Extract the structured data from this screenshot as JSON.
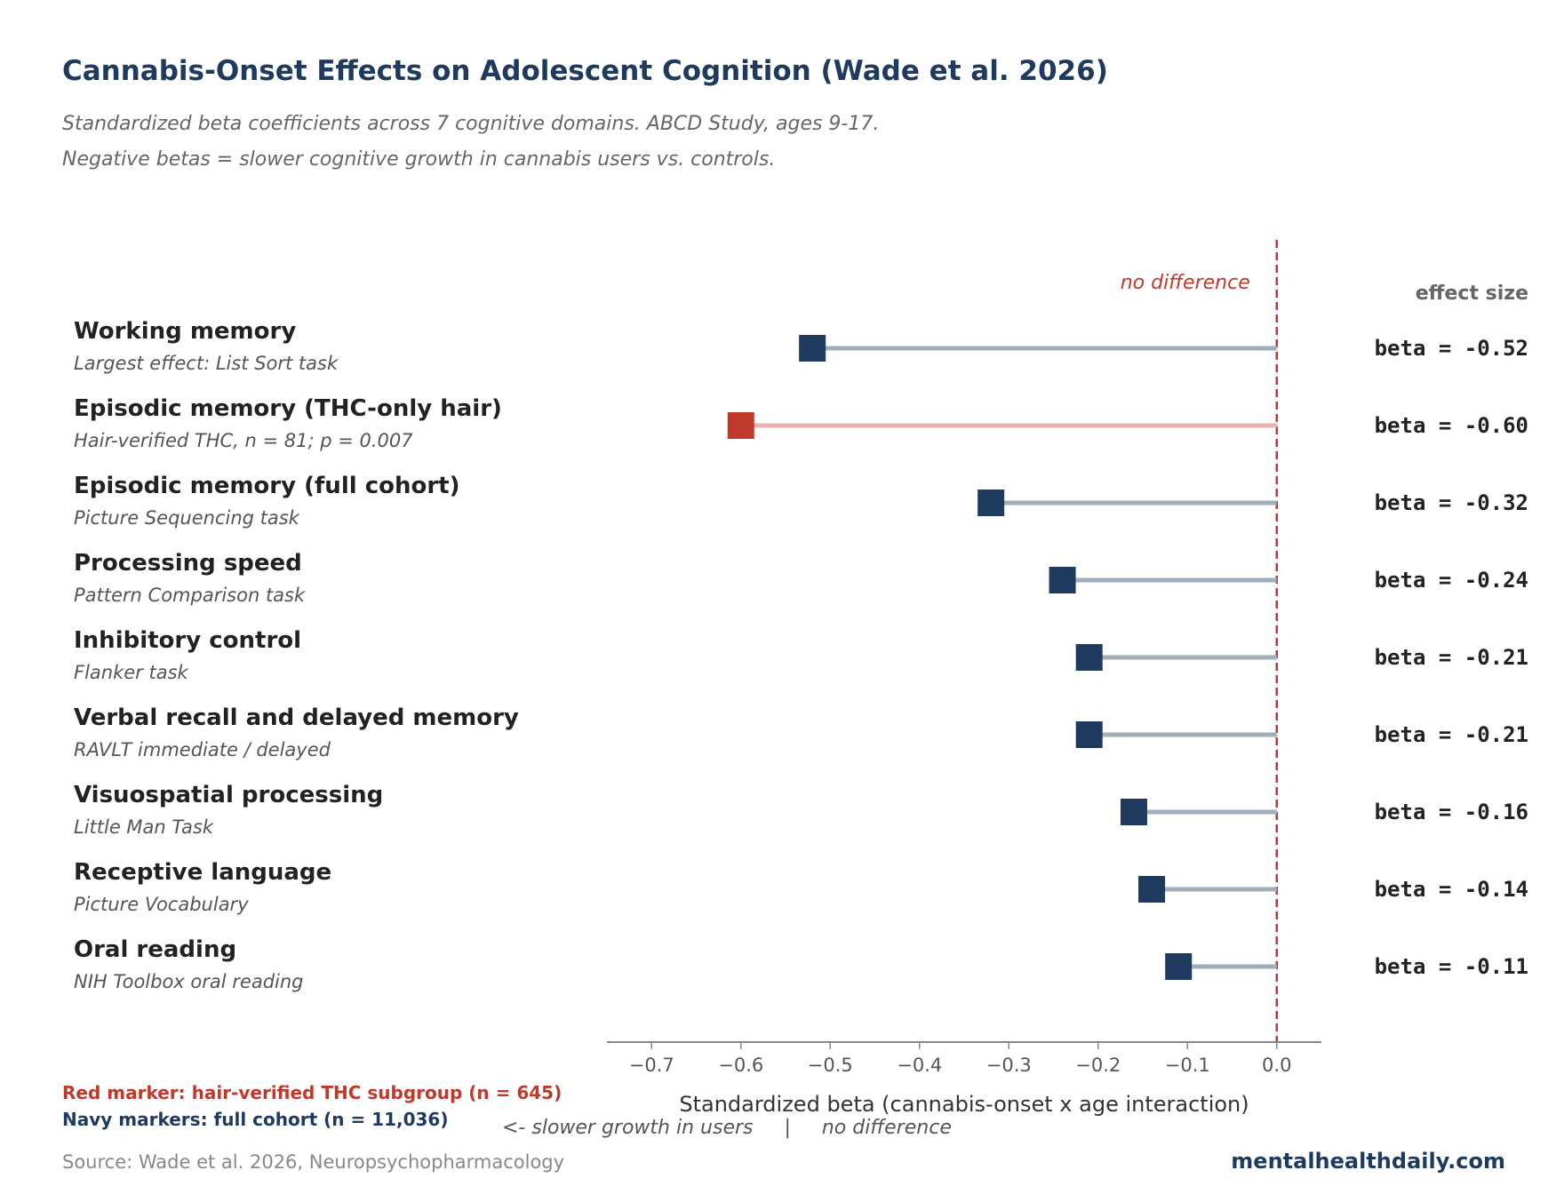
{
  "title": "Cannabis-Onset Effects on Adolescent Cognition (Wade et al. 2026)",
  "subtitle_line1": "Standardized beta coefficients across 7 cognitive domains. ABCD Study, ages 9-17.",
  "subtitle_line2": "Negative betas = slower cognitive growth in cannabis users vs. controls.",
  "legend": {
    "red": "Red marker: hair-verified THC subgroup (n = 645)",
    "navy": "Navy markers: full cohort (n = 11,036)"
  },
  "source": "Source: Wade et al. 2026, Neuropsychopharmacology",
  "site": "mentalhealthdaily.com",
  "colors": {
    "navy": "#1f3a5f",
    "red": "#c0392b",
    "navy_line": "#a0adbb",
    "red_line": "#e8b2ab",
    "zero_line": "#c0392b"
  },
  "chart_data": {
    "type": "dot",
    "xlabel": "Standardized beta (cannabis-onset x age interaction)",
    "direction_note": "<- slower growth in users     |     no difference",
    "zero_label": "no difference",
    "column_header": "effect size",
    "xlim": [
      -0.75,
      0.05
    ],
    "xticks": [
      -0.7,
      -0.6,
      -0.5,
      -0.4,
      -0.3,
      -0.2,
      -0.1,
      0.0
    ],
    "xtick_labels": [
      "−0.7",
      "−0.6",
      "−0.5",
      "−0.4",
      "−0.3",
      "−0.2",
      "−0.1",
      "0.0"
    ],
    "rows": [
      {
        "label": "Working memory",
        "sublabel": "Largest effect: List Sort task",
        "value": -0.52,
        "value_text": "beta = -0.52",
        "group": "full"
      },
      {
        "label": "Episodic memory (THC-only hair)",
        "sublabel": "Hair-verified THC, n = 81; p = 0.007",
        "value": -0.6,
        "value_text": "beta = -0.60",
        "group": "hair"
      },
      {
        "label": "Episodic memory (full cohort)",
        "sublabel": "Picture Sequencing task",
        "value": -0.32,
        "value_text": "beta = -0.32",
        "group": "full"
      },
      {
        "label": "Processing speed",
        "sublabel": "Pattern Comparison task",
        "value": -0.24,
        "value_text": "beta = -0.24",
        "group": "full"
      },
      {
        "label": "Inhibitory control",
        "sublabel": "Flanker task",
        "value": -0.21,
        "value_text": "beta = -0.21",
        "group": "full"
      },
      {
        "label": "Verbal recall and delayed memory",
        "sublabel": "RAVLT immediate / delayed",
        "value": -0.21,
        "value_text": "beta = -0.21",
        "group": "full"
      },
      {
        "label": "Visuospatial processing",
        "sublabel": "Little Man Task",
        "value": -0.16,
        "value_text": "beta = -0.16",
        "group": "full"
      },
      {
        "label": "Receptive language",
        "sublabel": "Picture Vocabulary",
        "value": -0.14,
        "value_text": "beta = -0.14",
        "group": "full"
      },
      {
        "label": "Oral reading",
        "sublabel": "NIH Toolbox oral reading",
        "value": -0.11,
        "value_text": "beta = -0.11",
        "group": "full"
      }
    ]
  }
}
